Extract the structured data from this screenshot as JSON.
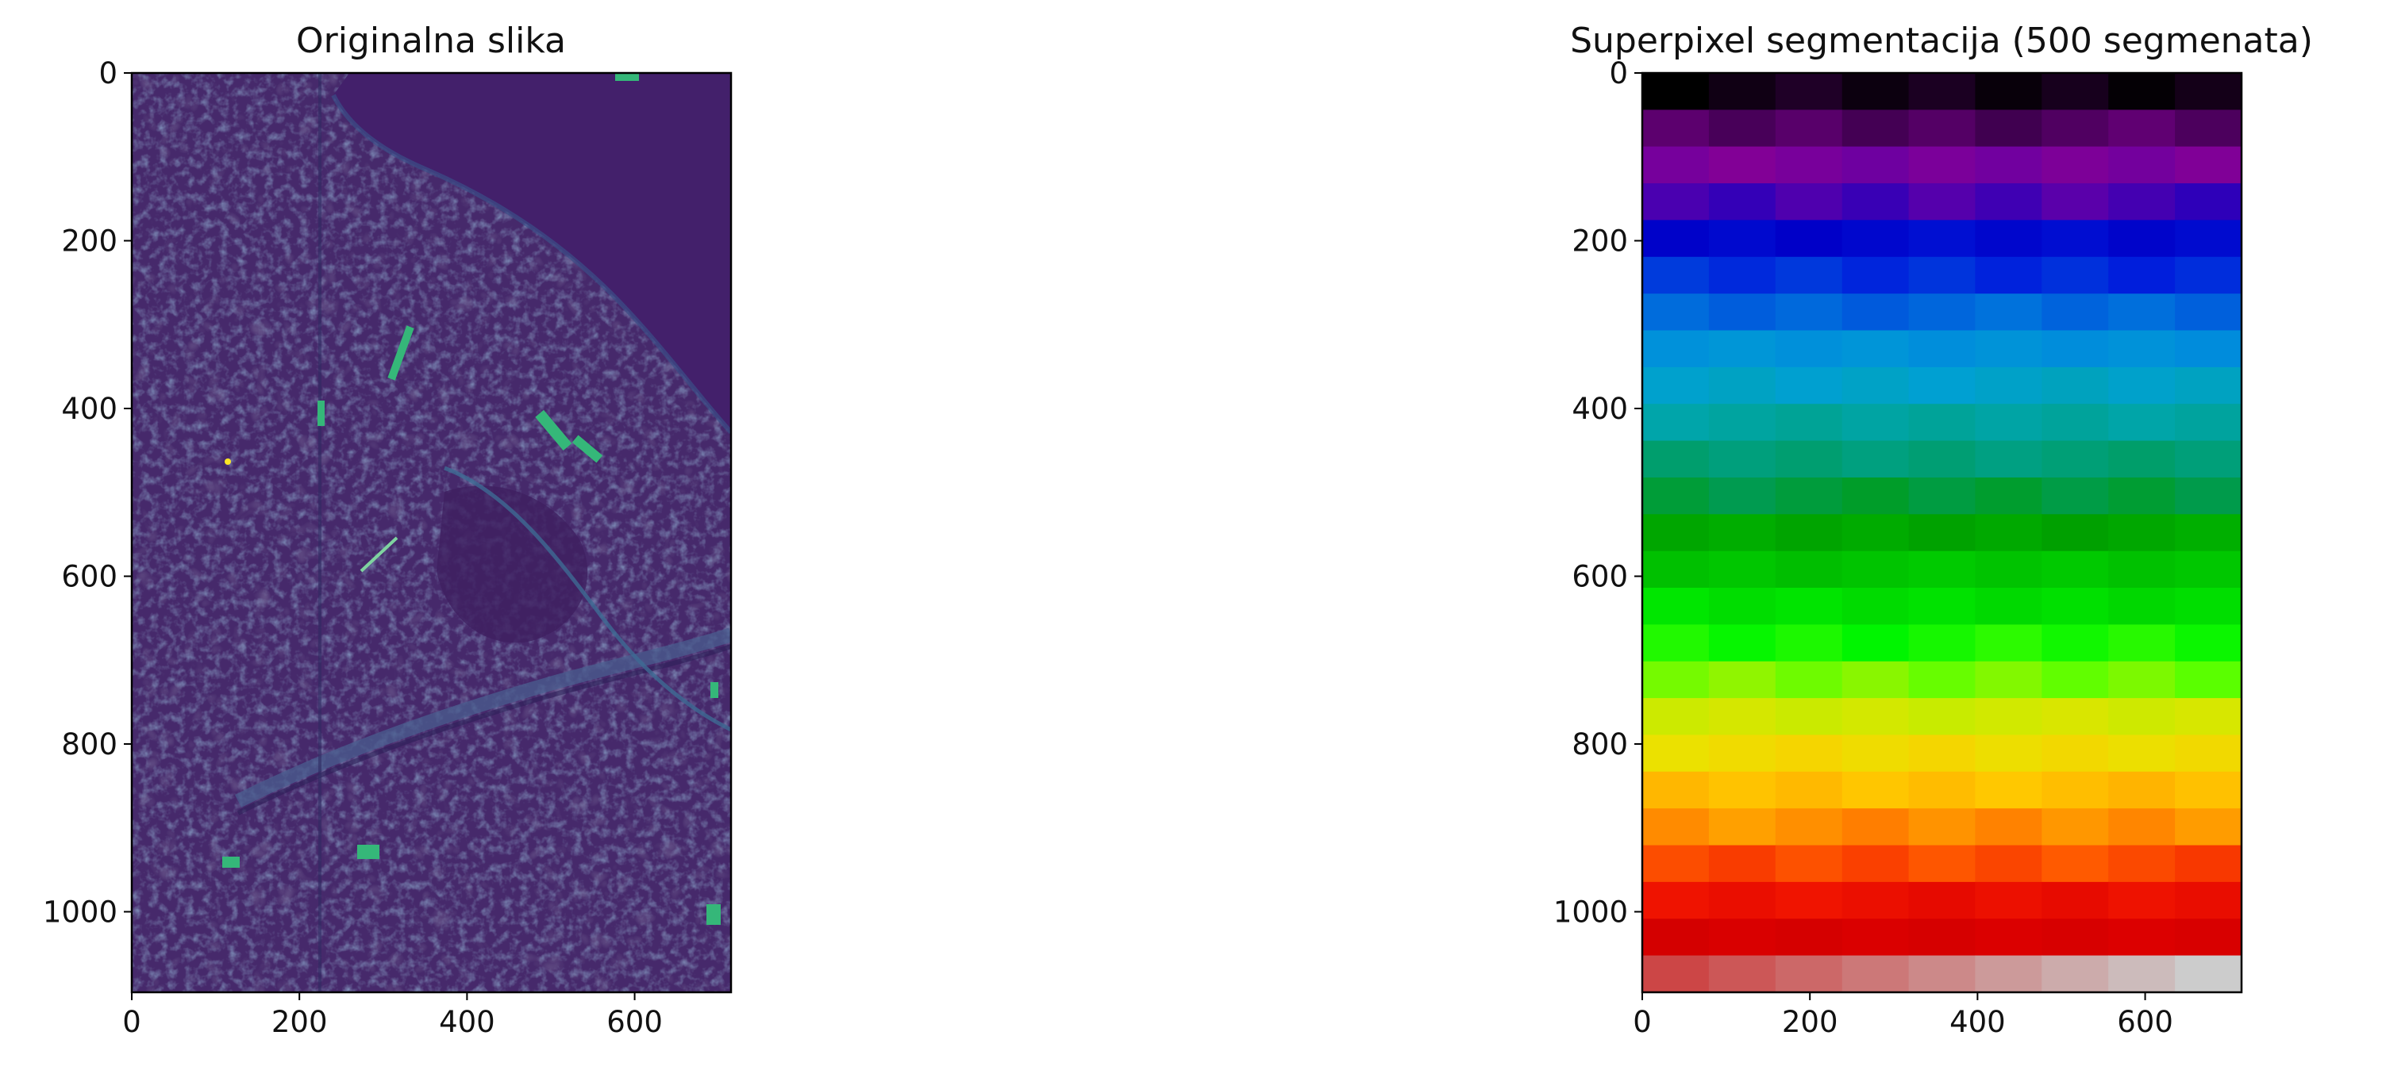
{
  "chart_data": [
    {
      "type": "image",
      "title": "Originalna slika",
      "colormap": "viridis",
      "xlim": [
        0,
        715
      ],
      "ylim": [
        1096,
        0
      ],
      "xticks": [
        0,
        200,
        400,
        600
      ],
      "yticks": [
        0,
        200,
        400,
        600,
        800,
        1000
      ],
      "grid": false
    },
    {
      "type": "heatmap",
      "title": "Superpixel segmentacija (500 segmenata)",
      "colormap": "nipy_spectral",
      "xlim": [
        0,
        715
      ],
      "ylim": [
        1096,
        0
      ],
      "xticks": [
        0,
        200,
        400,
        600
      ],
      "yticks": [
        0,
        200,
        400,
        600,
        800,
        1000
      ],
      "grid": false,
      "rows": 25,
      "cols": 9
    }
  ],
  "colors": {
    "axis": "#000000",
    "background": "#ffffff",
    "viridis_base": "#46296b",
    "viridis_river": "#44216c",
    "viridis_road": "#3c5a8a",
    "viridis_bright": "#35b779",
    "viridis_yellow": "#fde725"
  }
}
